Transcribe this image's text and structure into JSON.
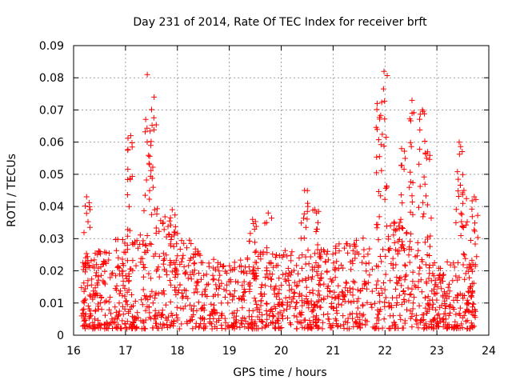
{
  "chart_data": {
    "type": "scatter",
    "title": "Day 231 of 2014, Rate Of TEC Index for receiver brft",
    "xlabel": "GPS time / hours",
    "ylabel": "ROTI / TECUs",
    "xlim": [
      16,
      24
    ],
    "ylim": [
      0,
      0.09
    ],
    "xticks": [
      16,
      17,
      18,
      19,
      20,
      21,
      22,
      23,
      24
    ],
    "yticks": [
      0,
      0.01,
      0.02,
      0.03,
      0.04,
      0.05,
      0.06,
      0.07,
      0.08,
      0.09
    ],
    "ytick_labels": [
      "0",
      "0.01",
      "0.02",
      "0.03",
      "0.04",
      "0.05",
      "0.06",
      "0.07",
      "0.08",
      "0.09"
    ],
    "grid": true,
    "marker": "+",
    "color": "#ff0000",
    "series": [
      {
        "name": "ROTI",
        "peaks": [
          {
            "x": 16.25,
            "y": 0.043
          },
          {
            "x": 17.1,
            "y": 0.062
          },
          {
            "x": 17.42,
            "y": 0.081
          },
          {
            "x": 17.55,
            "y": 0.074
          },
          {
            "x": 17.9,
            "y": 0.039
          },
          {
            "x": 19.45,
            "y": 0.036
          },
          {
            "x": 19.75,
            "y": 0.038
          },
          {
            "x": 20.45,
            "y": 0.045
          },
          {
            "x": 20.65,
            "y": 0.039
          },
          {
            "x": 21.85,
            "y": 0.072
          },
          {
            "x": 21.98,
            "y": 0.082
          },
          {
            "x": 22.32,
            "y": 0.058
          },
          {
            "x": 22.52,
            "y": 0.073
          },
          {
            "x": 22.72,
            "y": 0.07
          },
          {
            "x": 22.82,
            "y": 0.057
          },
          {
            "x": 23.43,
            "y": 0.06
          },
          {
            "x": 23.52,
            "y": 0.045
          },
          {
            "x": 23.72,
            "y": 0.043
          }
        ],
        "envelope": [
          {
            "x": 16.0,
            "y": 0.022
          },
          {
            "x": 16.5,
            "y": 0.025
          },
          {
            "x": 17.0,
            "y": 0.03
          },
          {
            "x": 17.5,
            "y": 0.04
          },
          {
            "x": 18.0,
            "y": 0.03
          },
          {
            "x": 18.5,
            "y": 0.025
          },
          {
            "x": 19.0,
            "y": 0.02
          },
          {
            "x": 19.5,
            "y": 0.024
          },
          {
            "x": 20.0,
            "y": 0.025
          },
          {
            "x": 20.5,
            "y": 0.024
          },
          {
            "x": 21.0,
            "y": 0.026
          },
          {
            "x": 21.5,
            "y": 0.028
          },
          {
            "x": 22.0,
            "y": 0.035
          },
          {
            "x": 22.5,
            "y": 0.03
          },
          {
            "x": 23.0,
            "y": 0.02
          },
          {
            "x": 23.5,
            "y": 0.022
          },
          {
            "x": 24.0,
            "y": 0.02
          }
        ]
      }
    ]
  }
}
